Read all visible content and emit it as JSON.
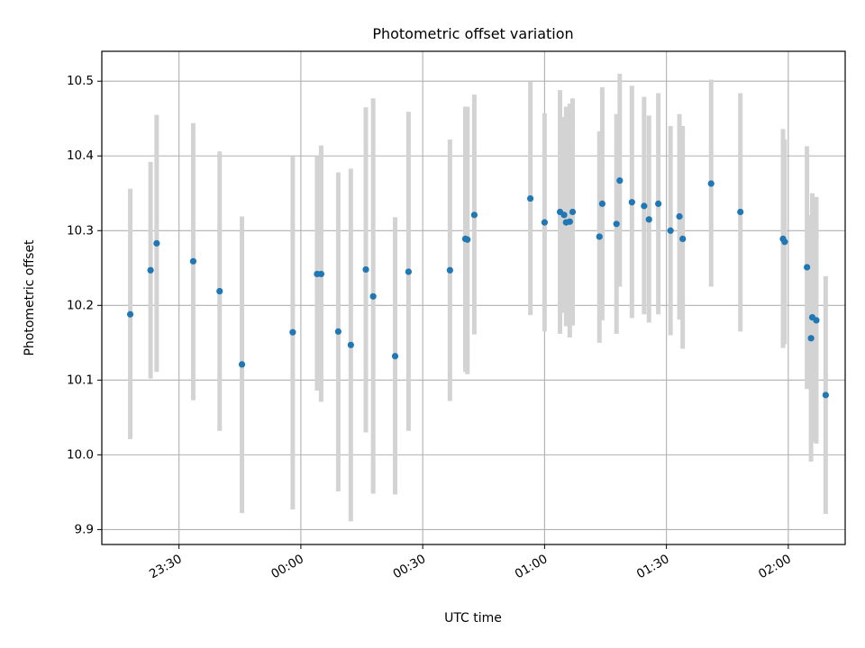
{
  "chart_data": {
    "type": "scatter",
    "title": "Photometric offset variation",
    "xlabel": "UTC time",
    "ylabel": "Photometric offset",
    "x_units": "minutes relative to 00:00 UTC",
    "xlim": [
      "23:11",
      "02:14"
    ],
    "ylim": [
      9.88,
      10.54
    ],
    "grid": true,
    "x_ticks": [
      {
        "value": -30,
        "label": "23:30"
      },
      {
        "value": 0,
        "label": "00:00"
      },
      {
        "value": 30,
        "label": "00:30"
      },
      {
        "value": 60,
        "label": "01:00"
      },
      {
        "value": 90,
        "label": "01:30"
      },
      {
        "value": 120,
        "label": "02:00"
      }
    ],
    "y_ticks": [
      "9.9",
      "10.0",
      "10.1",
      "10.2",
      "10.3",
      "10.4",
      "10.5"
    ],
    "series": [
      {
        "marker_color": "#1f77b4",
        "errorbar_color": "#d3d3d3",
        "points": [
          {
            "x": -42.0,
            "y": 10.188,
            "low": 10.021,
            "high": 10.356
          },
          {
            "x": -37.0,
            "y": 10.247,
            "low": 10.102,
            "high": 10.392
          },
          {
            "x": -35.5,
            "y": 10.283,
            "low": 10.111,
            "high": 10.455
          },
          {
            "x": -26.5,
            "y": 10.259,
            "low": 10.073,
            "high": 10.444
          },
          {
            "x": -20.0,
            "y": 10.219,
            "low": 10.032,
            "high": 10.406
          },
          {
            "x": -14.5,
            "y": 10.121,
            "low": 9.922,
            "high": 10.319
          },
          {
            "x": -2.0,
            "y": 10.164,
            "low": 9.927,
            "high": 10.399
          },
          {
            "x": 4.0,
            "y": 10.242,
            "low": 10.086,
            "high": 10.4
          },
          {
            "x": 5.0,
            "y": 10.242,
            "low": 10.071,
            "high": 10.414
          },
          {
            "x": 9.2,
            "y": 10.165,
            "low": 9.951,
            "high": 10.378
          },
          {
            "x": 12.3,
            "y": 10.147,
            "low": 9.911,
            "high": 10.383
          },
          {
            "x": 16.0,
            "y": 10.248,
            "low": 10.03,
            "high": 10.465
          },
          {
            "x": 17.8,
            "y": 10.212,
            "low": 9.948,
            "high": 10.477
          },
          {
            "x": 23.2,
            "y": 10.132,
            "low": 9.947,
            "high": 10.318
          },
          {
            "x": 26.5,
            "y": 10.245,
            "low": 10.032,
            "high": 10.459
          },
          {
            "x": 36.7,
            "y": 10.247,
            "low": 10.072,
            "high": 10.422
          },
          {
            "x": 40.5,
            "y": 10.289,
            "low": 10.111,
            "high": 10.466
          },
          {
            "x": 41.0,
            "y": 10.288,
            "low": 10.108,
            "high": 10.466
          },
          {
            "x": 42.7,
            "y": 10.321,
            "low": 10.161,
            "high": 10.482
          },
          {
            "x": 56.5,
            "y": 10.343,
            "low": 10.187,
            "high": 10.499
          },
          {
            "x": 60.0,
            "y": 10.311,
            "low": 10.165,
            "high": 10.457
          },
          {
            "x": 63.8,
            "y": 10.325,
            "low": 10.162,
            "high": 10.488
          },
          {
            "x": 64.8,
            "y": 10.321,
            "low": 10.19,
            "high": 10.452
          },
          {
            "x": 65.3,
            "y": 10.311,
            "low": 10.172,
            "high": 10.466
          },
          {
            "x": 66.2,
            "y": 10.312,
            "low": 10.157,
            "high": 10.47
          },
          {
            "x": 66.9,
            "y": 10.325,
            "low": 10.173,
            "high": 10.477
          },
          {
            "x": 73.5,
            "y": 10.292,
            "low": 10.15,
            "high": 10.433
          },
          {
            "x": 74.2,
            "y": 10.336,
            "low": 10.18,
            "high": 10.492
          },
          {
            "x": 77.7,
            "y": 10.309,
            "low": 10.162,
            "high": 10.456
          },
          {
            "x": 78.5,
            "y": 10.367,
            "low": 10.225,
            "high": 10.51
          },
          {
            "x": 81.5,
            "y": 10.338,
            "low": 10.183,
            "high": 10.494
          },
          {
            "x": 84.5,
            "y": 10.333,
            "low": 10.188,
            "high": 10.479
          },
          {
            "x": 85.7,
            "y": 10.315,
            "low": 10.177,
            "high": 10.454
          },
          {
            "x": 88.0,
            "y": 10.336,
            "low": 10.188,
            "high": 10.484
          },
          {
            "x": 91.0,
            "y": 10.3,
            "low": 10.16,
            "high": 10.44
          },
          {
            "x": 93.2,
            "y": 10.319,
            "low": 10.181,
            "high": 10.456
          },
          {
            "x": 94.0,
            "y": 10.289,
            "low": 10.142,
            "high": 10.44
          },
          {
            "x": 101.0,
            "y": 10.363,
            "low": 10.225,
            "high": 10.502
          },
          {
            "x": 108.2,
            "y": 10.325,
            "low": 10.165,
            "high": 10.484
          },
          {
            "x": 118.7,
            "y": 10.289,
            "low": 10.143,
            "high": 10.436
          },
          {
            "x": 119.1,
            "y": 10.285,
            "low": 10.148,
            "high": 10.422
          },
          {
            "x": 124.6,
            "y": 10.251,
            "low": 10.088,
            "high": 10.413
          },
          {
            "x": 125.6,
            "y": 10.156,
            "low": 9.991,
            "high": 10.321
          },
          {
            "x": 125.9,
            "y": 10.184,
            "low": 10.017,
            "high": 10.35
          },
          {
            "x": 126.9,
            "y": 10.18,
            "low": 10.015,
            "high": 10.345
          },
          {
            "x": 129.2,
            "y": 10.08,
            "low": 9.921,
            "high": 10.239
          }
        ]
      }
    ]
  }
}
